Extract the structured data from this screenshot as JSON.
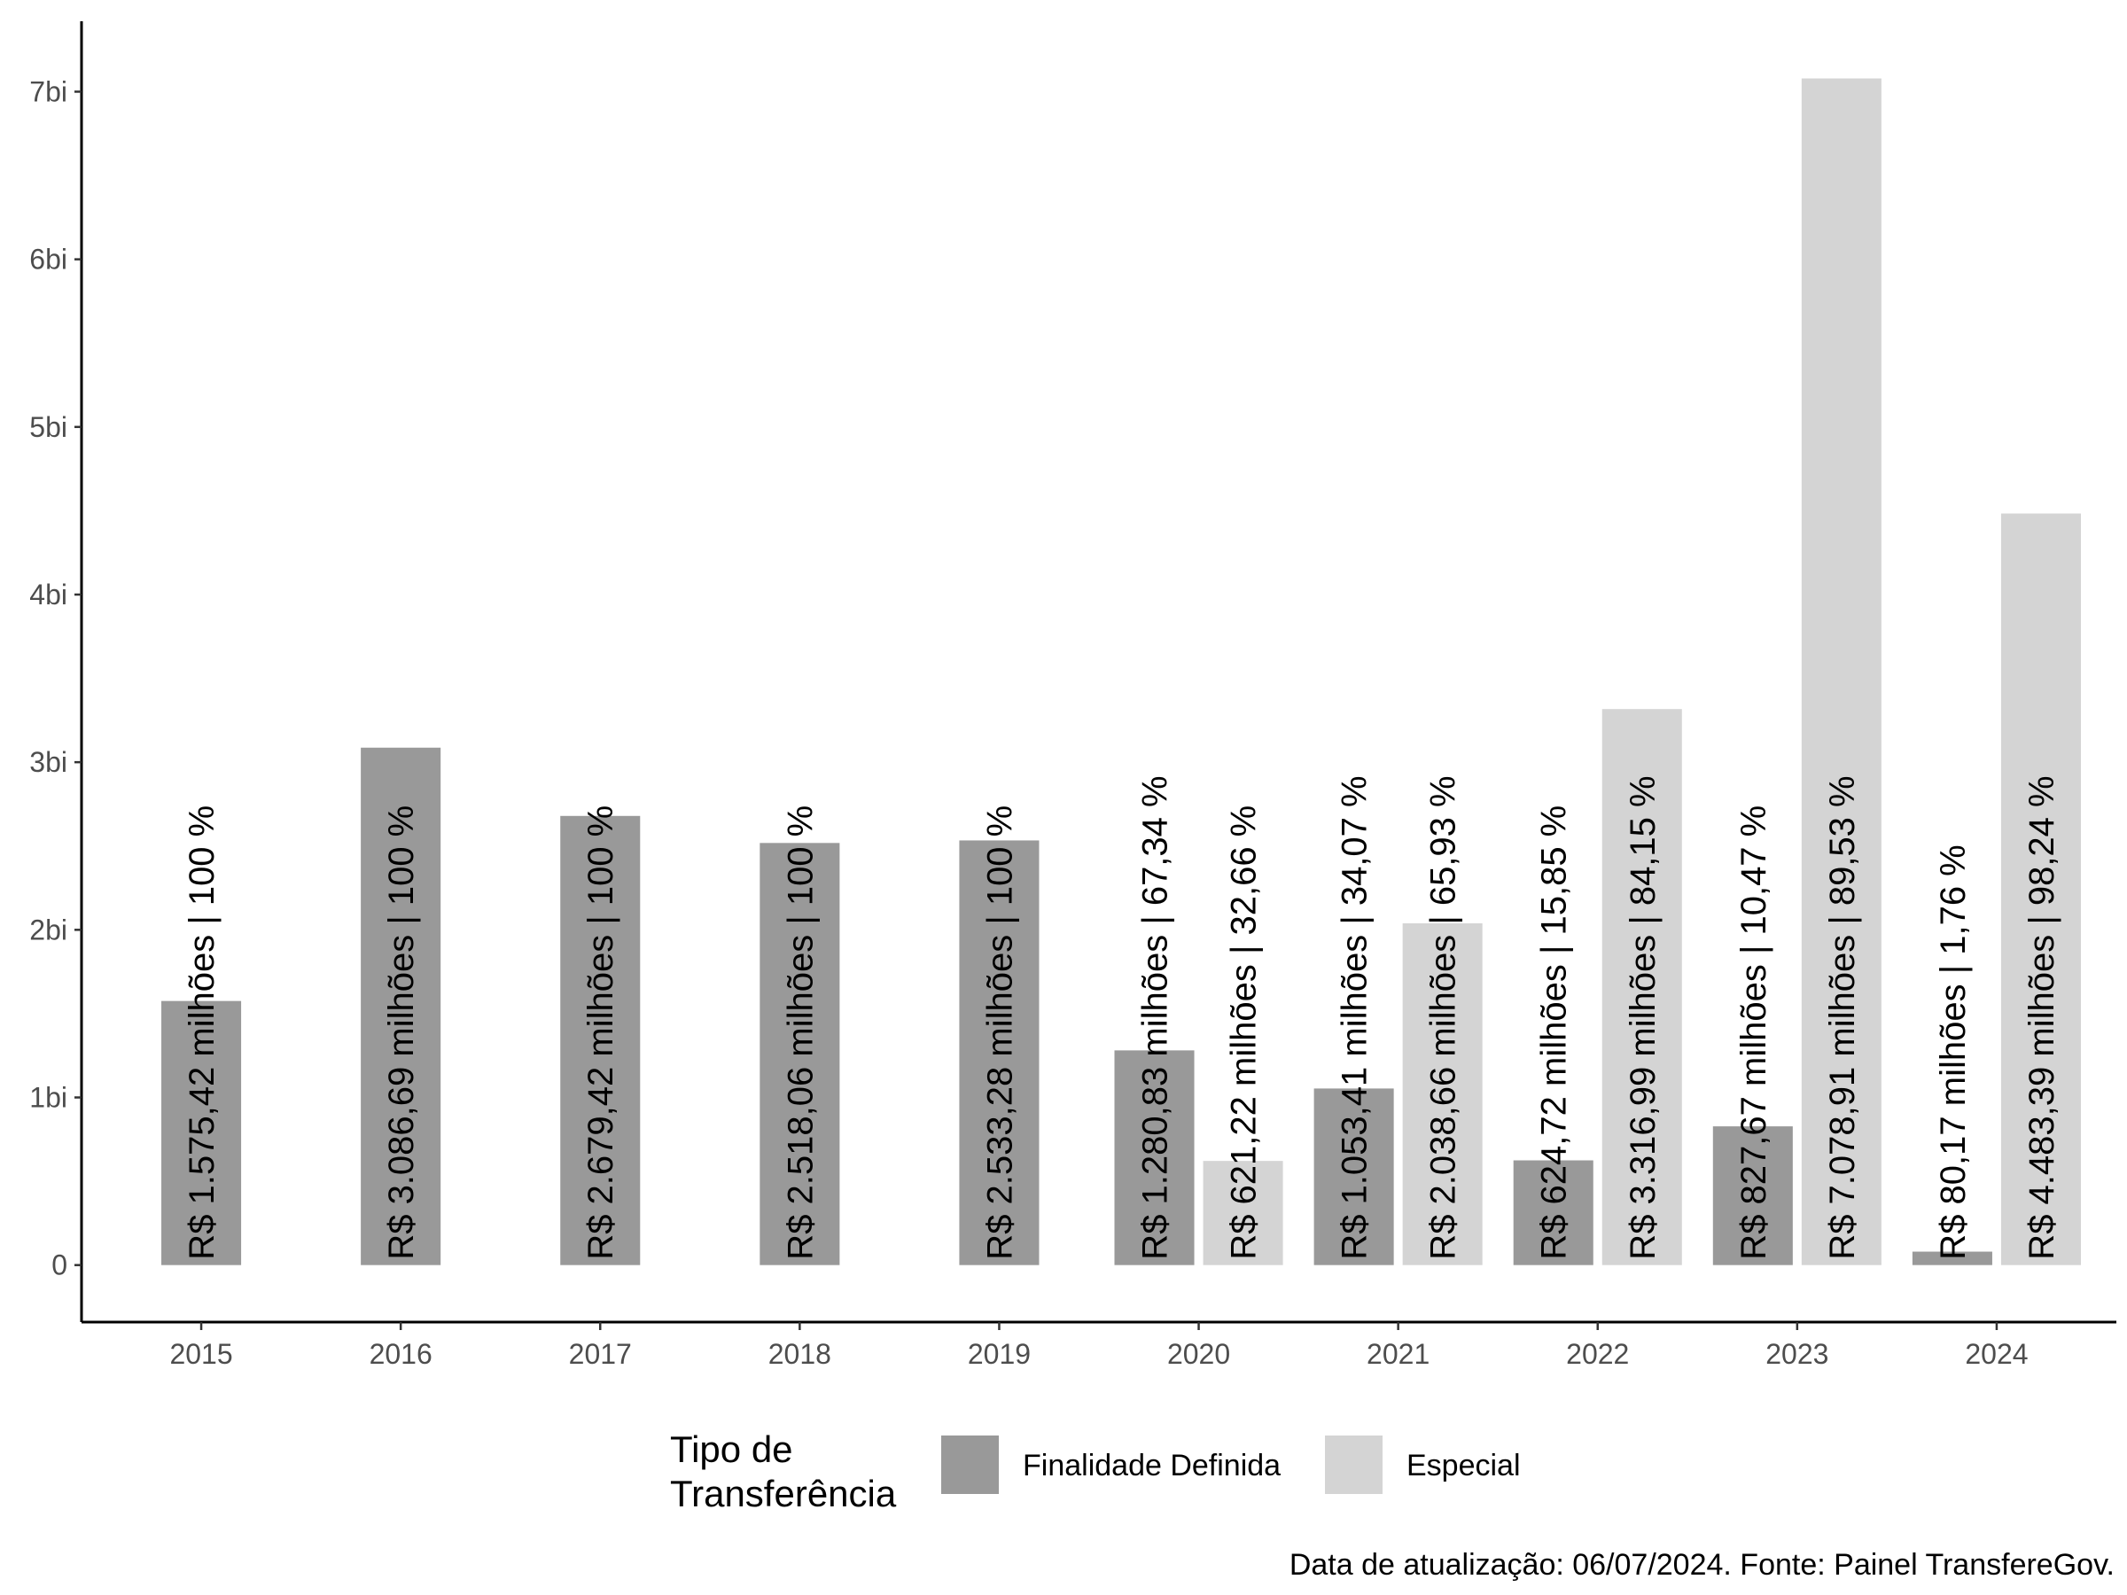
{
  "chart_data": {
    "type": "bar",
    "categories": [
      "2015",
      "2016",
      "2017",
      "2018",
      "2019",
      "2020",
      "2021",
      "2022",
      "2023",
      "2024"
    ],
    "series": [
      {
        "name": "Finalidade Definida",
        "color": "#999999",
        "values": [
          1575.42,
          3086.69,
          2679.42,
          2518.06,
          2533.28,
          1280.83,
          1053.41,
          624.72,
          827.67,
          80.17
        ],
        "labels": [
          "R$ 1.575,42 milhões | 100 %",
          "R$ 3.086,69 milhões | 100 %",
          "R$ 2.679,42 milhões | 100 %",
          "R$ 2.518,06 milhões | 100 %",
          "R$ 2.533,28 milhões | 100 %",
          "R$ 1.280,83 milhões | 67,34 %",
          "R$ 1.053,41 milhões | 34,07 %",
          "R$ 624,72 milhões | 15,85 %",
          "R$ 827,67 milhões | 10,47 %",
          "R$ 80,17 milhões | 1,76 %"
        ]
      },
      {
        "name": "Especial",
        "color": "#d4d4d4",
        "values": [
          null,
          null,
          null,
          null,
          null,
          621.22,
          2038.66,
          3316.99,
          7078.91,
          4483.39
        ],
        "labels": [
          null,
          null,
          null,
          null,
          null,
          "R$ 621,22 milhões | 32,66 %",
          "R$ 2.038,66 milhões | 65,93 %",
          "R$ 3.316,99 milhões | 84,15 %",
          "R$ 7.078,91 milhões | 89,53 %",
          "R$ 4.483,39 milhões | 98,24 %"
        ]
      }
    ],
    "yticks": [
      {
        "value": 0,
        "label": "0"
      },
      {
        "value": 1000,
        "label": "1bi"
      },
      {
        "value": 2000,
        "label": "2bi"
      },
      {
        "value": 3000,
        "label": "3bi"
      },
      {
        "value": 4000,
        "label": "4bi"
      },
      {
        "value": 5000,
        "label": "5bi"
      },
      {
        "value": 6000,
        "label": "6bi"
      },
      {
        "value": 7000,
        "label": "7bi"
      }
    ],
    "ylim": [
      -340,
      7420
    ],
    "title": "",
    "xlabel": "",
    "ylabel": "",
    "legend": {
      "title_lines": [
        "Tipo de",
        "Transferência"
      ],
      "position": "bottom"
    },
    "caption": "Data de atualização: 06/07/2024. Fonte: Painel TransfereGov.",
    "grid": false
  }
}
